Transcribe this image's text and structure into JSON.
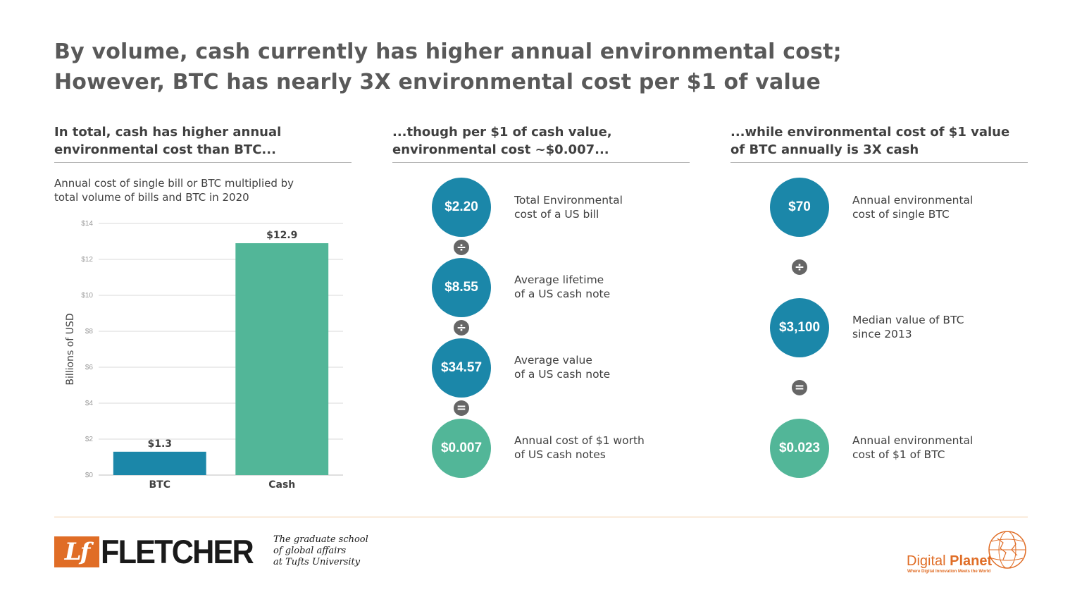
{
  "title": {
    "line1": "By volume, cash currently has higher annual environmental cost;",
    "line2": "However, BTC has nearly 3X environmental cost per $1 of value"
  },
  "col1": {
    "heading_line1": "In total, cash has higher annual",
    "heading_line2": "environmental cost than BTC...",
    "subtitle_line1": "Annual cost of single bill or BTC multiplied by",
    "subtitle_line2": "total volume of bills and BTC in 2020"
  },
  "chart_data": {
    "type": "bar",
    "title": "",
    "subtitle": "Annual cost of single bill or BTC multiplied by total volume of bills and BTC in 2020",
    "categories": [
      "BTC",
      "Cash"
    ],
    "values": [
      1.3,
      12.9
    ],
    "data_labels": [
      "$1.3",
      "$12.9"
    ],
    "bar_colors": [
      "#1b87a9",
      "#52b698"
    ],
    "xlabel": "",
    "ylabel": "Billions of USD",
    "ylim": [
      0,
      14
    ],
    "yticks": [
      0,
      2,
      4,
      6,
      8,
      10,
      12,
      14
    ],
    "ytick_labels": [
      "$0",
      "$2",
      "$4",
      "$6",
      "$8",
      "$10",
      "$12",
      "$14"
    ],
    "grid": true,
    "legend": "none"
  },
  "col2": {
    "heading_line1": "...though per $1 of cash value,",
    "heading_line2": "environmental cost ~$0.007...",
    "items": [
      {
        "value": "$2.20",
        "desc_line1": "Total Environmental",
        "desc_line2": "cost of a US bill",
        "color": "#1b87a9"
      },
      {
        "value": "$8.55",
        "desc_line1": "Average lifetime",
        "desc_line2": "of a US cash note",
        "color": "#1b87a9"
      },
      {
        "value": "$34.57",
        "desc_line1": "Average value",
        "desc_line2": "of a US cash note",
        "color": "#1b87a9"
      },
      {
        "value": "$0.007",
        "desc_line1": "Annual cost of $1 worth",
        "desc_line2": "of US cash notes",
        "color": "#52b698"
      }
    ],
    "operators": [
      "÷",
      "÷",
      "="
    ]
  },
  "col3": {
    "heading_line1": "...while environmental cost of $1 value",
    "heading_line2": "of BTC annually is 3X cash",
    "items": [
      {
        "value": "$70",
        "desc_line1": "Annual environmental",
        "desc_line2": "cost of single BTC",
        "color": "#1b87a9"
      },
      {
        "value": "$3,100",
        "desc_line1": "Median value of BTC",
        "desc_line2": "since 2013",
        "color": "#1b87a9"
      },
      {
        "value": "$0.023",
        "desc_line1": "Annual environmental",
        "desc_line2": "cost of $1 of BTC",
        "color": "#52b698"
      }
    ],
    "operators": [
      "÷",
      "="
    ]
  },
  "footer": {
    "fletcher_mark": "Lf",
    "fletcher_name": "FLETCHER",
    "fletcher_tag_line1": "The graduate school",
    "fletcher_tag_line2": "of global affairs",
    "fletcher_tag_line3": "at Tufts University",
    "dp_word1": "Digital",
    "dp_word2": "Planet",
    "dp_tag": "Where Digital Innovation Meets the World",
    "accent_color": "#e06d26"
  }
}
